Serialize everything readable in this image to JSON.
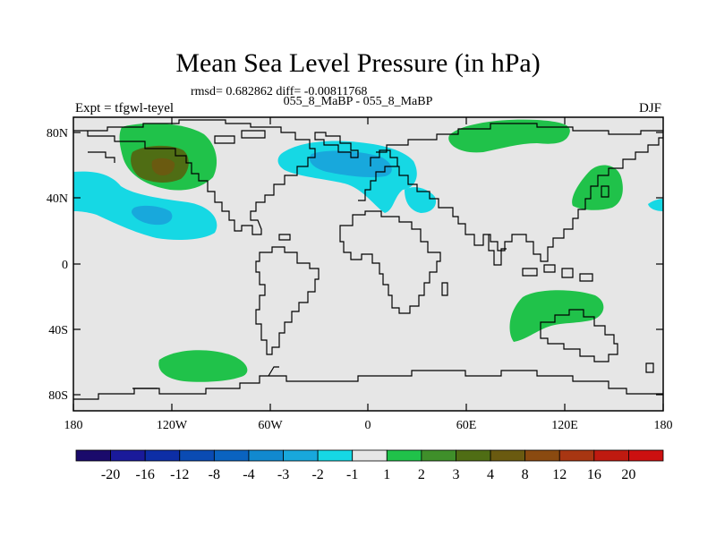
{
  "title": "Mean Sea Level Pressure (in hPa)",
  "stats": "rmsd= 0.682862 diff= -0.00811768",
  "subtitle": "055_8_MaBP - 055_8_MaBP",
  "left_label": "Expt = tfgwl-teyel",
  "right_label": "DJF",
  "lat_ticks": [
    "80N",
    "40N",
    "0",
    "40S",
    "80S"
  ],
  "lon_ticks": [
    "180",
    "120W",
    "60W",
    "0",
    "60E",
    "120E",
    "180"
  ],
  "colorbar": {
    "labels": [
      "-20",
      "-16",
      "-12",
      "-8",
      "-4",
      "-3",
      "-2",
      "-1",
      "1",
      "2",
      "3",
      "4",
      "8",
      "12",
      "16",
      "20"
    ],
    "colors": [
      "#1a0a6b",
      "#1a1a9a",
      "#0d2ea6",
      "#0a4bb3",
      "#0a63c0",
      "#1189cf",
      "#18a8dc",
      "#16d8e4",
      "#e6e6e6",
      "#20c24a",
      "#3f8f2a",
      "#4f6d14",
      "#6a5a10",
      "#8a4a10",
      "#a83612",
      "#bf1a10",
      "#cc1010"
    ]
  },
  "colors": {
    "background_field": "#e6e6e6",
    "coast": "#000000"
  }
}
